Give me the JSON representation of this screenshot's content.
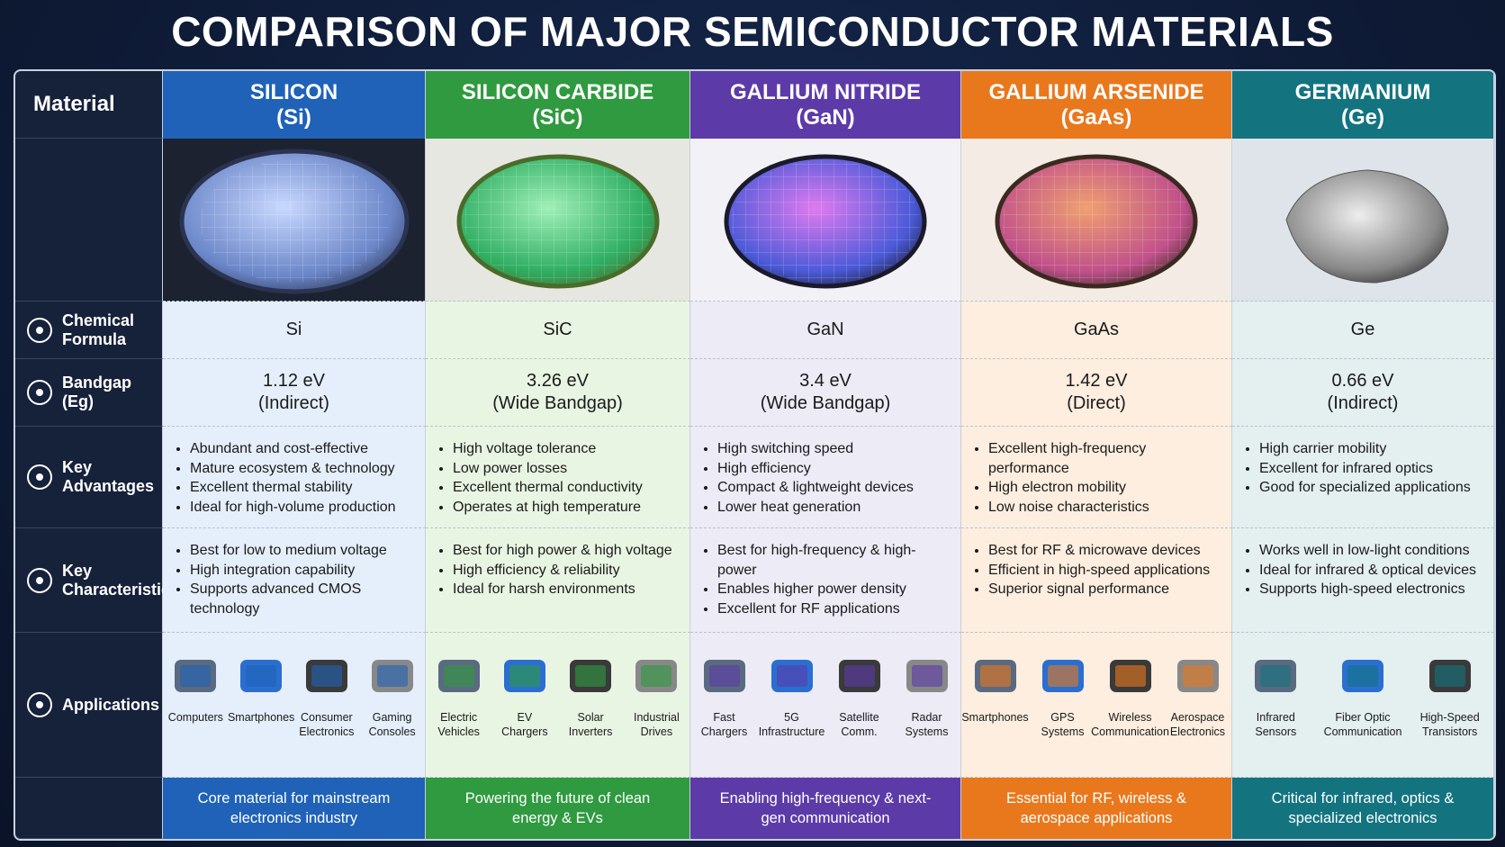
{
  "title": "COMPARISON OF MAJOR SEMICONDUCTOR MATERIALS",
  "row_labels": {
    "material": "Material",
    "formula": "Chemical Formula",
    "bandgap": "Bandgap (Eg)",
    "advantages": "Key Advantages",
    "characteristics": "Key Characteristics",
    "applications": "Applications"
  },
  "materials": [
    {
      "name": "SILICON",
      "symbol": "(Si)",
      "formula": "Si",
      "bandgap": "1.12 eV",
      "bandgap_type": "(Indirect)",
      "advantages": [
        "Abundant and cost-effective",
        "Mature ecosystem & technology",
        "Excellent thermal stability",
        "Ideal for high-volume production"
      ],
      "characteristics": [
        "Best for low to medium voltage",
        "High integration capability",
        "Supports advanced CMOS technology"
      ],
      "applications": [
        "Computers",
        "Smartphones",
        "Consumer Electronics",
        "Gaming Consoles"
      ],
      "summary": "Core material for mainstream electronics industry"
    },
    {
      "name": "SILICON CARBIDE",
      "symbol": "(SiC)",
      "formula": "SiC",
      "bandgap": "3.26 eV",
      "bandgap_type": "(Wide Bandgap)",
      "advantages": [
        "High voltage tolerance",
        "Low power losses",
        "Excellent thermal conductivity",
        "Operates at high temperature"
      ],
      "characteristics": [
        "Best for high power & high voltage",
        "High efficiency & reliability",
        "Ideal for harsh environments"
      ],
      "applications": [
        "Electric Vehicles",
        "EV Chargers",
        "Solar Inverters",
        "Industrial Drives"
      ],
      "summary": "Powering the future of clean energy & EVs"
    },
    {
      "name": "GALLIUM NITRIDE",
      "symbol": "(GaN)",
      "formula": "GaN",
      "bandgap": "3.4 eV",
      "bandgap_type": "(Wide Bandgap)",
      "advantages": [
        "High switching speed",
        "High efficiency",
        "Compact & lightweight devices",
        "Lower heat generation"
      ],
      "characteristics": [
        "Best for high-frequency & high-power",
        "Enables higher power density",
        "Excellent for RF applications"
      ],
      "applications": [
        "Fast Chargers",
        "5G Infrastructure",
        "Satellite Comm.",
        "Radar Systems"
      ],
      "summary": "Enabling high-frequency & next-gen communication"
    },
    {
      "name": "GALLIUM ARSENIDE",
      "symbol": "(GaAs)",
      "formula": "GaAs",
      "bandgap": "1.42 eV",
      "bandgap_type": "(Direct)",
      "advantages": [
        "Excellent high-frequency performance",
        "High electron mobility",
        "Low noise characteristics"
      ],
      "characteristics": [
        "Best for RF & microwave devices",
        "Efficient in high-speed applications",
        "Superior signal performance"
      ],
      "applications": [
        "Smartphones",
        "GPS Systems",
        "Wireless Communication",
        "Aerospace Electronics"
      ],
      "summary": "Essential for RF, wireless & aerospace applications"
    },
    {
      "name": "GERMANIUM",
      "symbol": "(Ge)",
      "formula": "Ge",
      "bandgap": "0.66 eV",
      "bandgap_type": "(Indirect)",
      "advantages": [
        "High carrier mobility",
        "Excellent for infrared optics",
        "Good for specialized applications"
      ],
      "characteristics": [
        "Works well in low-light conditions",
        "Ideal for infrared & optical devices",
        "Supports high-speed electronics"
      ],
      "applications": [
        "Infrared Sensors",
        "Fiber Optic Communication",
        "High-Speed Transistors"
      ],
      "summary": "Critical for infrared, optics & specialized electronics"
    }
  ]
}
